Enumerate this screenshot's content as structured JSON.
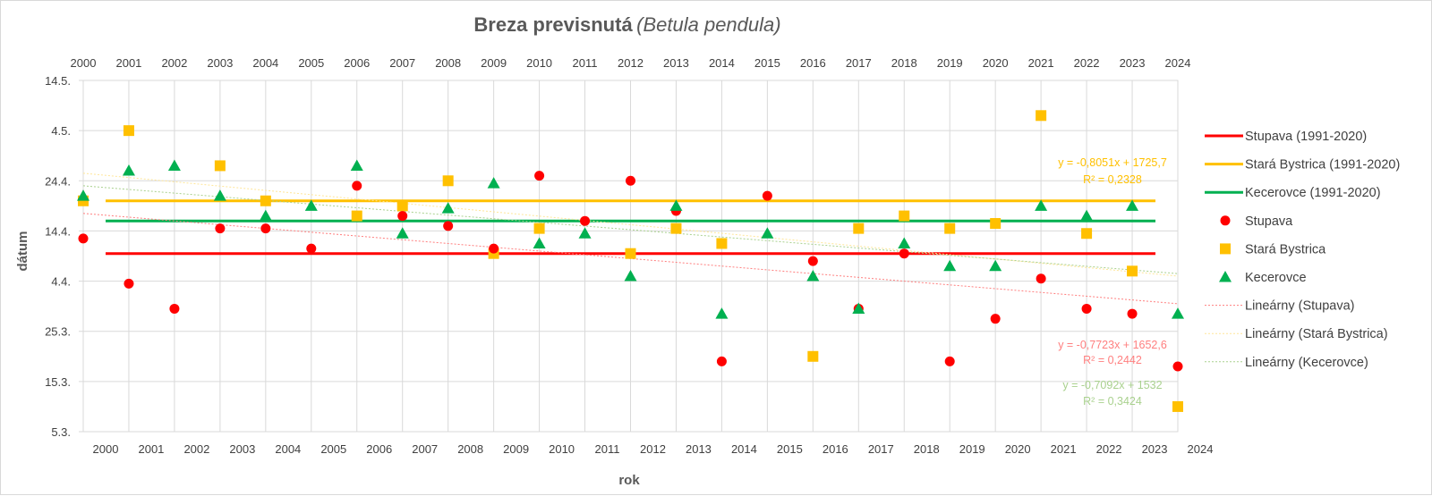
{
  "chart_data": {
    "type": "scatter",
    "title": "Breza previsnutá",
    "title_italic": "(Betula pendula)",
    "xlabel": "rok",
    "ylabel": "dátum",
    "x_bottom_ticks": [
      "2000",
      "2001",
      "2002",
      "2003",
      "2004",
      "2005",
      "2006",
      "2007",
      "2008",
      "2009",
      "2010",
      "2011",
      "2012",
      "2013",
      "2014",
      "2015",
      "2016",
      "2017",
      "2018",
      "2019",
      "2020",
      "2021",
      "2022",
      "2023",
      "2024"
    ],
    "x_top_ticks": [
      "2000",
      "2001",
      "2002",
      "2003",
      "2004",
      "2005",
      "2006",
      "2007",
      "2008",
      "2009",
      "2010",
      "2011",
      "2012",
      "2013",
      "2014",
      "2015",
      "2016",
      "2017",
      "2018",
      "2019",
      "2020",
      "2021",
      "2022",
      "2023",
      "2024"
    ],
    "y_day_min": 0,
    "y_day_max": 70,
    "y_ticks": [
      {
        "day": 0,
        "label": "5.3."
      },
      {
        "day": 10,
        "label": "15.3."
      },
      {
        "day": 20,
        "label": "25.3."
      },
      {
        "day": 30,
        "label": "4.4."
      },
      {
        "day": 40,
        "label": "14.4."
      },
      {
        "day": 50,
        "label": "24.4."
      },
      {
        "day": 60,
        "label": "4.5."
      },
      {
        "day": 70,
        "label": "14.5."
      }
    ],
    "series": [
      {
        "name": "Stupava",
        "color": "#ff0000",
        "marker": "circle",
        "x": [
          2000,
          2001,
          2002,
          2003,
          2004,
          2005,
          2006,
          2007,
          2008,
          2009,
          2010,
          2011,
          2012,
          2013,
          2014,
          2015,
          2016,
          2017,
          2018,
          2019,
          2020,
          2021,
          2022,
          2023,
          2024
        ],
        "values": [
          38.5,
          29.5,
          24.5,
          40.5,
          40.5,
          36.5,
          49,
          43,
          41,
          36.5,
          51,
          42,
          50,
          44,
          14,
          47,
          34,
          24.5,
          35.5,
          14,
          22.5,
          30.5,
          24.5,
          23.5,
          13
        ]
      },
      {
        "name": "Stará Bystrica",
        "color": "#ffc000",
        "marker": "square",
        "x": [
          2000,
          2001,
          2002,
          2003,
          2004,
          2005,
          2006,
          2007,
          2008,
          2009,
          2010,
          2011,
          2012,
          2013,
          2014,
          2015,
          2016,
          2017,
          2018,
          2019,
          2020,
          2021,
          2022,
          2023,
          2024
        ],
        "values": [
          46,
          60,
          null,
          53,
          46,
          null,
          43,
          45,
          50,
          35.5,
          40.5,
          null,
          35.5,
          40.5,
          37.5,
          null,
          15,
          40.5,
          43,
          40.5,
          41.5,
          63,
          39.5,
          32,
          5
        ]
      },
      {
        "name": "Kecerovce",
        "color": "#00b050",
        "marker": "triangle",
        "x": [
          2000,
          2001,
          2002,
          2003,
          2004,
          2005,
          2006,
          2007,
          2008,
          2009,
          2010,
          2011,
          2012,
          2013,
          2014,
          2015,
          2016,
          2017,
          2018,
          2019,
          2020,
          2021,
          2022,
          2023,
          2024
        ],
        "values": [
          47,
          52,
          53,
          47,
          43,
          45,
          53,
          39.5,
          44.5,
          49.5,
          37.5,
          39.5,
          31,
          45,
          23.5,
          39.5,
          31,
          24.5,
          37.5,
          33,
          33,
          45,
          43,
          45,
          23.5
        ]
      }
    ],
    "normals": [
      {
        "name": "Stupava (1991-2020)",
        "color": "#ff0000",
        "value": 35.5
      },
      {
        "name": "Stará Bystrica (1991-2020)",
        "color": "#ffc000",
        "value": 46
      },
      {
        "name": "Kecerovce (1991-2020)",
        "color": "#00b050",
        "value": 42
      }
    ],
    "trendlines": [
      {
        "name": "Lineárny (Stupava)",
        "color": "#ff7f7f",
        "start": [
          2000,
          43.5
        ],
        "end": [
          2024,
          25.5
        ],
        "equation": "y = -0,7723x + 1652,6",
        "r2": "R² = 0,2442"
      },
      {
        "name": "Lineárny (Stará Bystrica)",
        "color": "#ffe699",
        "start": [
          2000,
          51.5
        ],
        "end": [
          2024,
          31
        ]
      },
      {
        "name": "Lineárny (Kecerovce)",
        "color": "#a9d18e",
        "start": [
          2000,
          49
        ],
        "end": [
          2024,
          31.5
        ],
        "equation": "y = -0,7092x + 1532",
        "r2": "R² = 0,3424"
      }
    ],
    "extra_equations": [
      {
        "series": "Stará Bystrica",
        "color": "#ffc000",
        "equation": "y = -0,8051x + 1725,7",
        "r2": "R² = 0,2328"
      }
    ],
    "legend": [
      {
        "label": "Stupava (1991-2020)",
        "kind": "line",
        "color": "#ff0000"
      },
      {
        "label": "Stará Bystrica (1991-2020)",
        "kind": "line",
        "color": "#ffc000"
      },
      {
        "label": " Kecerovce (1991-2020)",
        "kind": "line",
        "color": "#00b050"
      },
      {
        "label": "Stupava",
        "kind": "circle",
        "color": "#ff0000"
      },
      {
        "label": "Stará Bystrica",
        "kind": "square",
        "color": "#ffc000"
      },
      {
        "label": "Kecerovce",
        "kind": "triangle",
        "color": "#00b050"
      },
      {
        "label": "Lineárny (Stupava)",
        "kind": "dotted",
        "color": "#ff7f7f"
      },
      {
        "label": "Lineárny (Stará Bystrica)",
        "kind": "dotted",
        "color": "#ffe699"
      },
      {
        "label": "Lineárny (Kecerovce)",
        "kind": "dotted",
        "color": "#a9d18e"
      }
    ],
    "legend_position": "right",
    "grid": true
  }
}
